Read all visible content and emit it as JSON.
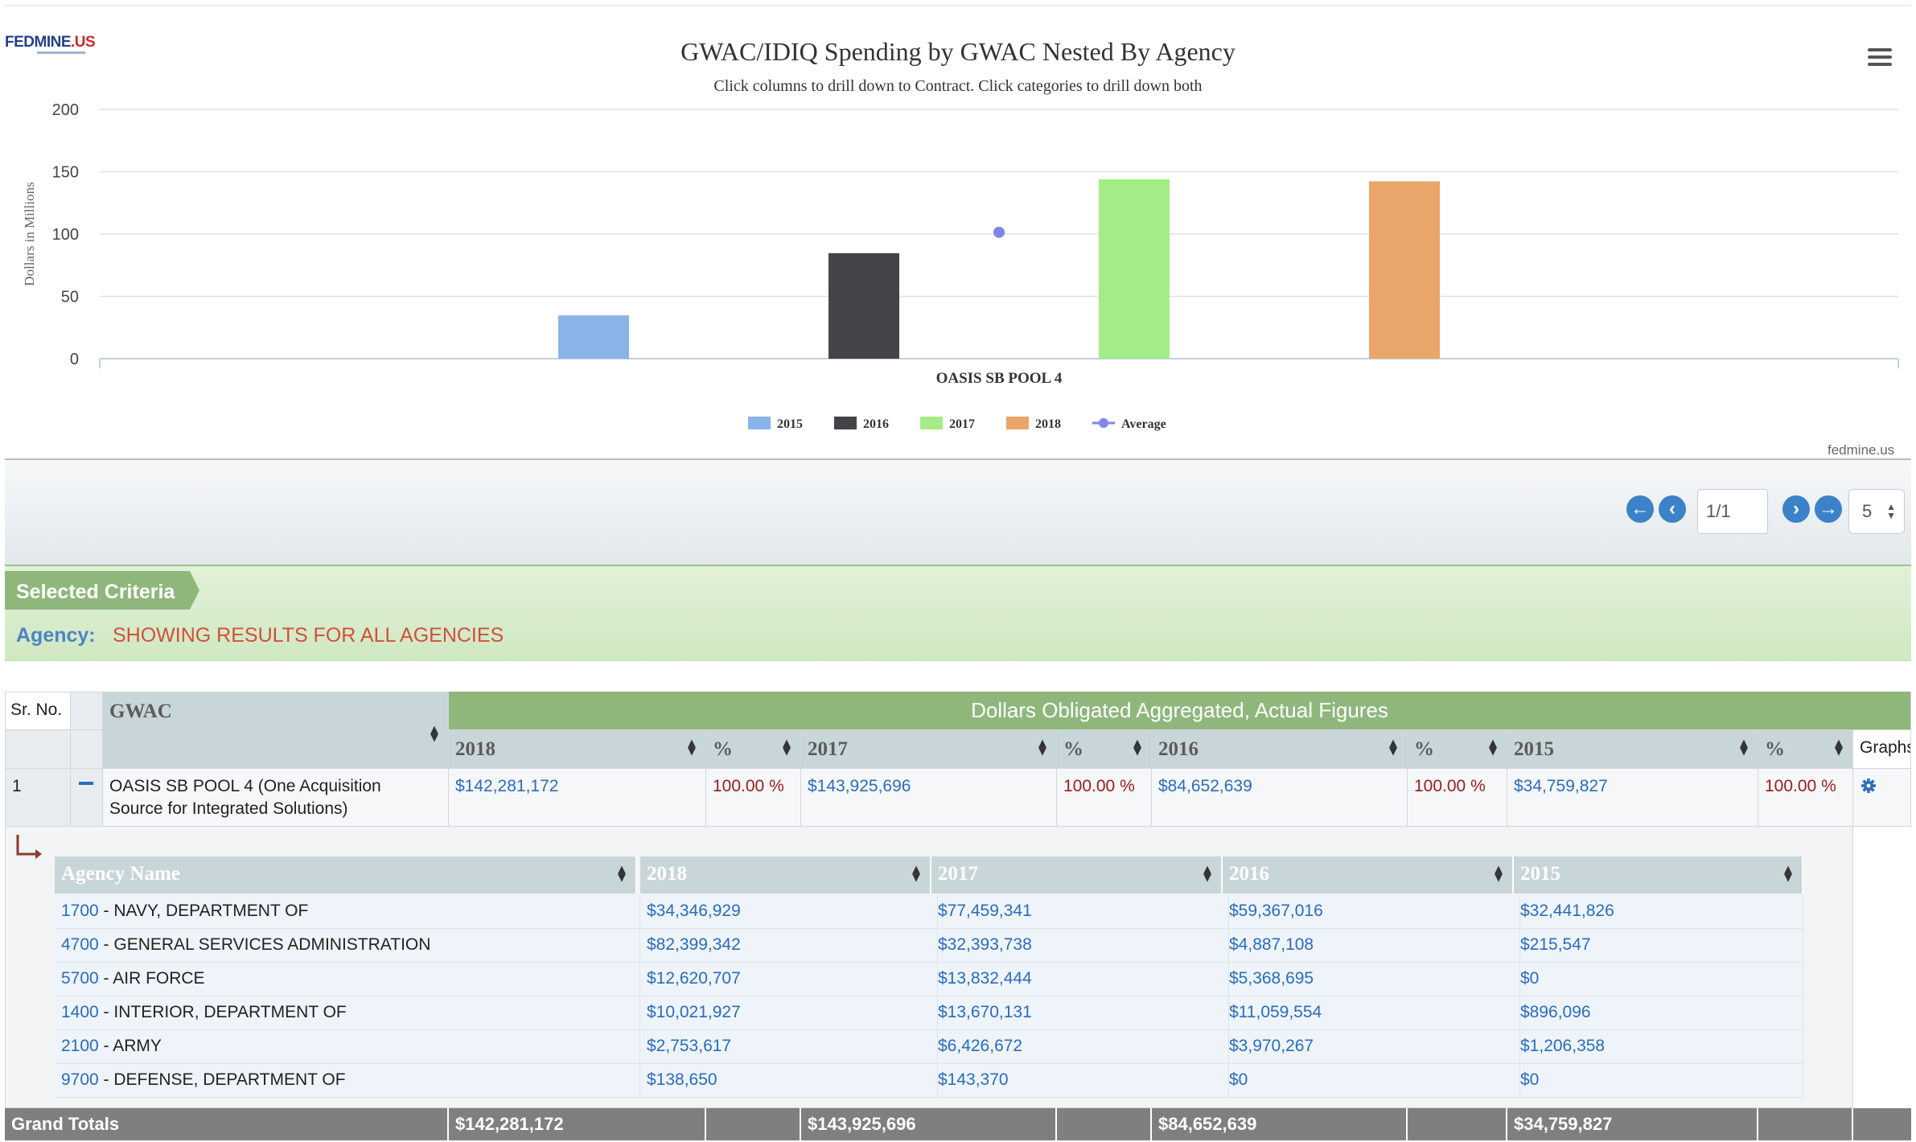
{
  "logo": {
    "text": "FEDMINE",
    "suffix": ".US"
  },
  "chart_data": {
    "type": "bar",
    "title": "GWAC/IDIQ Spending by GWAC Nested By Agency",
    "subtitle": "Click columns to drill down to Contract. Click categories to drill down both",
    "ylabel": "Dollars in Millions",
    "xlabel": "",
    "categories": [
      "OASIS SB POOL 4"
    ],
    "ylim": [
      0,
      200
    ],
    "yticks": [
      0,
      50,
      100,
      150,
      200
    ],
    "grid": true,
    "legend": "bottom",
    "series": [
      {
        "name": "2015",
        "color": "#8ab4e8",
        "values": [
          34.76
        ]
      },
      {
        "name": "2016",
        "color": "#434348",
        "values": [
          84.65
        ]
      },
      {
        "name": "2017",
        "color": "#a4ec85",
        "values": [
          143.93
        ]
      },
      {
        "name": "2018",
        "color": "#eaa66a",
        "values": [
          142.28
        ]
      }
    ],
    "average": {
      "name": "Average",
      "color": "#8085e9",
      "values": [
        101.4
      ]
    },
    "credit": "fedmine.us"
  },
  "pager": {
    "page": "1/1",
    "page_size": "5"
  },
  "criteria": {
    "tag": "Selected Criteria",
    "label": "Agency:",
    "value": "SHOWING RESULTS FOR ALL AGENCIES"
  },
  "table": {
    "headers": {
      "srno": "Sr. No.",
      "gwac": "GWAC",
      "group": "Dollars Obligated Aggregated, Actual Figures",
      "y2018": "2018",
      "y2017": "2017",
      "y2016": "2016",
      "y2015": "2015",
      "pct": "%",
      "graphs": "Graphs"
    },
    "row": {
      "srno": "1",
      "gwac_line1": "OASIS SB POOL 4 (One Acquisition",
      "gwac_line2": "Source for Integrated Solutions)",
      "v2018": "$142,281,172",
      "p2018": "100.00 %",
      "v2017": "$143,925,696",
      "p2017": "100.00 %",
      "v2016": "$84,652,639",
      "p2016": "100.00 %",
      "v2015": "$34,759,827",
      "p2015": "100.00 %"
    },
    "nested": {
      "headers": [
        "Agency Name",
        "2018",
        "2017",
        "2016",
        "2015"
      ],
      "rows": [
        {
          "code": "1700",
          "name": " - NAVY, DEPARTMENT OF",
          "v2018": "$34,346,929",
          "v2017": "$77,459,341",
          "v2016": "$59,367,016",
          "v2015": "$32,441,826"
        },
        {
          "code": "4700",
          "name": " - GENERAL SERVICES ADMINISTRATION",
          "v2018": "$82,399,342",
          "v2017": "$32,393,738",
          "v2016": "$4,887,108",
          "v2015": "$215,547"
        },
        {
          "code": "5700",
          "name": " - AIR FORCE",
          "v2018": "$12,620,707",
          "v2017": "$13,832,444",
          "v2016": "$5,368,695",
          "v2015": "$0"
        },
        {
          "code": "1400",
          "name": " - INTERIOR, DEPARTMENT OF",
          "v2018": "$10,021,927",
          "v2017": "$13,670,131",
          "v2016": "$11,059,554",
          "v2015": "$896,096"
        },
        {
          "code": "2100",
          "name": " - ARMY",
          "v2018": "$2,753,617",
          "v2017": "$6,426,672",
          "v2016": "$3,970,267",
          "v2015": "$1,206,358"
        },
        {
          "code": "9700",
          "name": " - DEFENSE, DEPARTMENT OF",
          "v2018": "$138,650",
          "v2017": "$143,370",
          "v2016": "$0",
          "v2015": "$0"
        }
      ]
    },
    "totals": {
      "label": "Grand Totals",
      "v2018": "$142,281,172",
      "v2017": "$143,925,696",
      "v2016": "$84,652,639",
      "v2015": "$34,759,827"
    }
  }
}
